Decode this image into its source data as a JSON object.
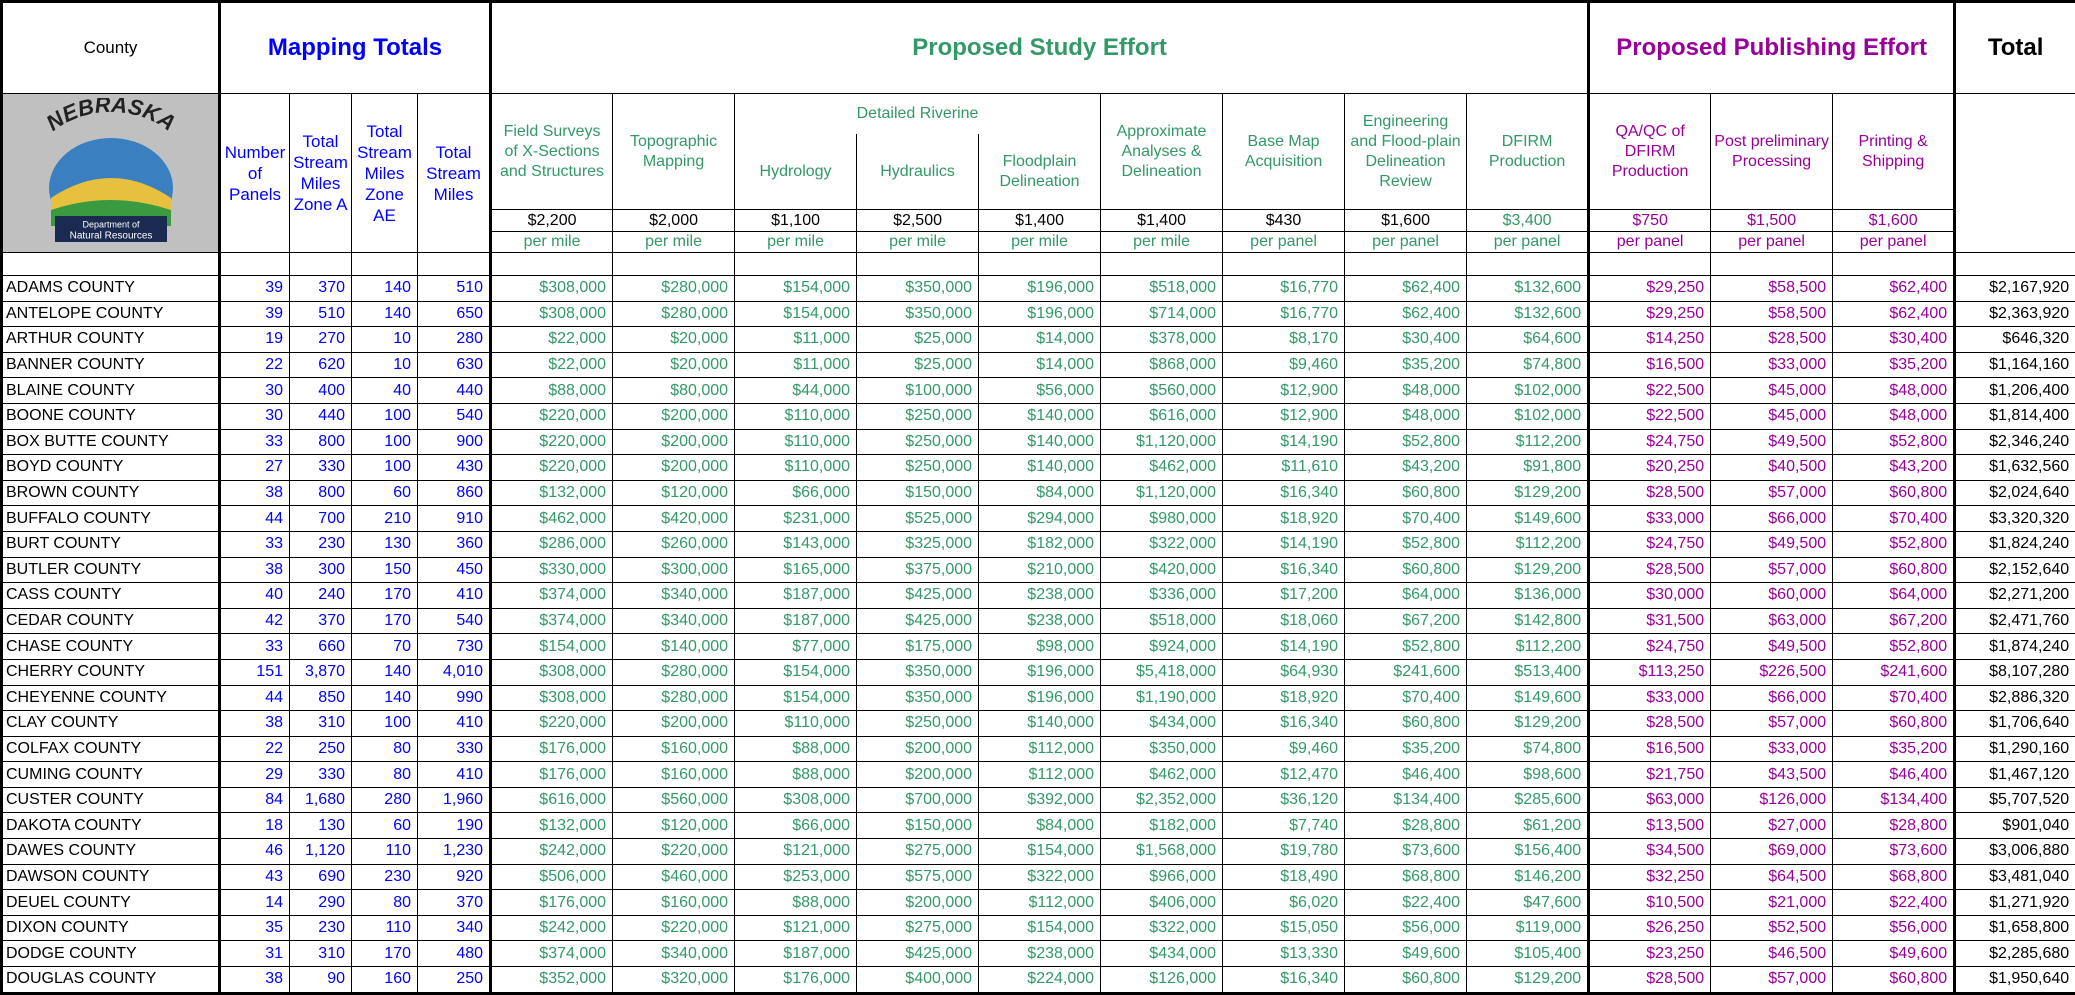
{
  "header": {
    "county": "County",
    "mapping": "Mapping Totals",
    "study": "Proposed Study Effort",
    "publishing": "Proposed Publishing Effort",
    "total": "Total"
  },
  "logo": {
    "name": "NEBRASKA",
    "department": "Department of",
    "resources": "Natural Resources"
  },
  "columns": [
    "Number of Panels",
    "Total Stream Miles Zone A",
    "Total Stream Miles Zone AE",
    "Total Stream Miles",
    "Field Surveys of X-Sections and Structures",
    "Topographic Mapping",
    "Hydrology",
    "Hydraulics",
    "Floodplain Delineation",
    "Approximate Analyses & Delineation",
    "Base Map Acquisition",
    "Engineering and Flood-plain Delineation Review",
    "DFIRM Production",
    "QA/QC of DFIRM Production",
    "Post preliminary Processing",
    "Printing & Shipping"
  ],
  "detailed_riverine": "Detailed Riverine",
  "rates": [
    {
      "rate": "$2,200",
      "unit": "per mile"
    },
    {
      "rate": "$2,000",
      "unit": "per mile"
    },
    {
      "rate": "$1,100",
      "unit": "per mile"
    },
    {
      "rate": "$2,500",
      "unit": "per mile"
    },
    {
      "rate": "$1,400",
      "unit": "per mile"
    },
    {
      "rate": "$1,400",
      "unit": "per mile"
    },
    {
      "rate": "$430",
      "unit": "per panel"
    },
    {
      "rate": "$1,600",
      "unit": "per panel"
    },
    {
      "rate": "$3,400",
      "unit": "per panel"
    },
    {
      "rate": "$750",
      "unit": "per panel"
    },
    {
      "rate": "$1,500",
      "unit": "per panel"
    },
    {
      "rate": "$1,600",
      "unit": "per panel"
    }
  ],
  "table": {
    "rows": [
      [
        "ADAMS COUNTY",
        "39",
        "370",
        "140",
        "510",
        "$308,000",
        "$280,000",
        "$154,000",
        "$350,000",
        "$196,000",
        "$518,000",
        "$16,770",
        "$62,400",
        "$132,600",
        "$29,250",
        "$58,500",
        "$62,400",
        "$2,167,920"
      ],
      [
        "ANTELOPE COUNTY",
        "39",
        "510",
        "140",
        "650",
        "$308,000",
        "$280,000",
        "$154,000",
        "$350,000",
        "$196,000",
        "$714,000",
        "$16,770",
        "$62,400",
        "$132,600",
        "$29,250",
        "$58,500",
        "$62,400",
        "$2,363,920"
      ],
      [
        "ARTHUR COUNTY",
        "19",
        "270",
        "10",
        "280",
        "$22,000",
        "$20,000",
        "$11,000",
        "$25,000",
        "$14,000",
        "$378,000",
        "$8,170",
        "$30,400",
        "$64,600",
        "$14,250",
        "$28,500",
        "$30,400",
        "$646,320"
      ],
      [
        "BANNER COUNTY",
        "22",
        "620",
        "10",
        "630",
        "$22,000",
        "$20,000",
        "$11,000",
        "$25,000",
        "$14,000",
        "$868,000",
        "$9,460",
        "$35,200",
        "$74,800",
        "$16,500",
        "$33,000",
        "$35,200",
        "$1,164,160"
      ],
      [
        "BLAINE COUNTY",
        "30",
        "400",
        "40",
        "440",
        "$88,000",
        "$80,000",
        "$44,000",
        "$100,000",
        "$56,000",
        "$560,000",
        "$12,900",
        "$48,000",
        "$102,000",
        "$22,500",
        "$45,000",
        "$48,000",
        "$1,206,400"
      ],
      [
        "BOONE COUNTY",
        "30",
        "440",
        "100",
        "540",
        "$220,000",
        "$200,000",
        "$110,000",
        "$250,000",
        "$140,000",
        "$616,000",
        "$12,900",
        "$48,000",
        "$102,000",
        "$22,500",
        "$45,000",
        "$48,000",
        "$1,814,400"
      ],
      [
        "BOX BUTTE COUNTY",
        "33",
        "800",
        "100",
        "900",
        "$220,000",
        "$200,000",
        "$110,000",
        "$250,000",
        "$140,000",
        "$1,120,000",
        "$14,190",
        "$52,800",
        "$112,200",
        "$24,750",
        "$49,500",
        "$52,800",
        "$2,346,240"
      ],
      [
        "BOYD COUNTY",
        "27",
        "330",
        "100",
        "430",
        "$220,000",
        "$200,000",
        "$110,000",
        "$250,000",
        "$140,000",
        "$462,000",
        "$11,610",
        "$43,200",
        "$91,800",
        "$20,250",
        "$40,500",
        "$43,200",
        "$1,632,560"
      ],
      [
        "BROWN COUNTY",
        "38",
        "800",
        "60",
        "860",
        "$132,000",
        "$120,000",
        "$66,000",
        "$150,000",
        "$84,000",
        "$1,120,000",
        "$16,340",
        "$60,800",
        "$129,200",
        "$28,500",
        "$57,000",
        "$60,800",
        "$2,024,640"
      ],
      [
        "BUFFALO COUNTY",
        "44",
        "700",
        "210",
        "910",
        "$462,000",
        "$420,000",
        "$231,000",
        "$525,000",
        "$294,000",
        "$980,000",
        "$18,920",
        "$70,400",
        "$149,600",
        "$33,000",
        "$66,000",
        "$70,400",
        "$3,320,320"
      ],
      [
        "BURT COUNTY",
        "33",
        "230",
        "130",
        "360",
        "$286,000",
        "$260,000",
        "$143,000",
        "$325,000",
        "$182,000",
        "$322,000",
        "$14,190",
        "$52,800",
        "$112,200",
        "$24,750",
        "$49,500",
        "$52,800",
        "$1,824,240"
      ],
      [
        "BUTLER COUNTY",
        "38",
        "300",
        "150",
        "450",
        "$330,000",
        "$300,000",
        "$165,000",
        "$375,000",
        "$210,000",
        "$420,000",
        "$16,340",
        "$60,800",
        "$129,200",
        "$28,500",
        "$57,000",
        "$60,800",
        "$2,152,640"
      ],
      [
        "CASS COUNTY",
        "40",
        "240",
        "170",
        "410",
        "$374,000",
        "$340,000",
        "$187,000",
        "$425,000",
        "$238,000",
        "$336,000",
        "$17,200",
        "$64,000",
        "$136,000",
        "$30,000",
        "$60,000",
        "$64,000",
        "$2,271,200"
      ],
      [
        "CEDAR COUNTY",
        "42",
        "370",
        "170",
        "540",
        "$374,000",
        "$340,000",
        "$187,000",
        "$425,000",
        "$238,000",
        "$518,000",
        "$18,060",
        "$67,200",
        "$142,800",
        "$31,500",
        "$63,000",
        "$67,200",
        "$2,471,760"
      ],
      [
        "CHASE COUNTY",
        "33",
        "660",
        "70",
        "730",
        "$154,000",
        "$140,000",
        "$77,000",
        "$175,000",
        "$98,000",
        "$924,000",
        "$14,190",
        "$52,800",
        "$112,200",
        "$24,750",
        "$49,500",
        "$52,800",
        "$1,874,240"
      ],
      [
        "CHERRY COUNTY",
        "151",
        "3,870",
        "140",
        "4,010",
        "$308,000",
        "$280,000",
        "$154,000",
        "$350,000",
        "$196,000",
        "$5,418,000",
        "$64,930",
        "$241,600",
        "$513,400",
        "$113,250",
        "$226,500",
        "$241,600",
        "$8,107,280"
      ],
      [
        "CHEYENNE COUNTY",
        "44",
        "850",
        "140",
        "990",
        "$308,000",
        "$280,000",
        "$154,000",
        "$350,000",
        "$196,000",
        "$1,190,000",
        "$18,920",
        "$70,400",
        "$149,600",
        "$33,000",
        "$66,000",
        "$70,400",
        "$2,886,320"
      ],
      [
        "CLAY COUNTY",
        "38",
        "310",
        "100",
        "410",
        "$220,000",
        "$200,000",
        "$110,000",
        "$250,000",
        "$140,000",
        "$434,000",
        "$16,340",
        "$60,800",
        "$129,200",
        "$28,500",
        "$57,000",
        "$60,800",
        "$1,706,640"
      ],
      [
        "COLFAX COUNTY",
        "22",
        "250",
        "80",
        "330",
        "$176,000",
        "$160,000",
        "$88,000",
        "$200,000",
        "$112,000",
        "$350,000",
        "$9,460",
        "$35,200",
        "$74,800",
        "$16,500",
        "$33,000",
        "$35,200",
        "$1,290,160"
      ],
      [
        "CUMING COUNTY",
        "29",
        "330",
        "80",
        "410",
        "$176,000",
        "$160,000",
        "$88,000",
        "$200,000",
        "$112,000",
        "$462,000",
        "$12,470",
        "$46,400",
        "$98,600",
        "$21,750",
        "$43,500",
        "$46,400",
        "$1,467,120"
      ],
      [
        "CUSTER COUNTY",
        "84",
        "1,680",
        "280",
        "1,960",
        "$616,000",
        "$560,000",
        "$308,000",
        "$700,000",
        "$392,000",
        "$2,352,000",
        "$36,120",
        "$134,400",
        "$285,600",
        "$63,000",
        "$126,000",
        "$134,400",
        "$5,707,520"
      ],
      [
        "DAKOTA COUNTY",
        "18",
        "130",
        "60",
        "190",
        "$132,000",
        "$120,000",
        "$66,000",
        "$150,000",
        "$84,000",
        "$182,000",
        "$7,740",
        "$28,800",
        "$61,200",
        "$13,500",
        "$27,000",
        "$28,800",
        "$901,040"
      ],
      [
        "DAWES COUNTY",
        "46",
        "1,120",
        "110",
        "1,230",
        "$242,000",
        "$220,000",
        "$121,000",
        "$275,000",
        "$154,000",
        "$1,568,000",
        "$19,780",
        "$73,600",
        "$156,400",
        "$34,500",
        "$69,000",
        "$73,600",
        "$3,006,880"
      ],
      [
        "DAWSON COUNTY",
        "43",
        "690",
        "230",
        "920",
        "$506,000",
        "$460,000",
        "$253,000",
        "$575,000",
        "$322,000",
        "$966,000",
        "$18,490",
        "$68,800",
        "$146,200",
        "$32,250",
        "$64,500",
        "$68,800",
        "$3,481,040"
      ],
      [
        "DEUEL COUNTY",
        "14",
        "290",
        "80",
        "370",
        "$176,000",
        "$160,000",
        "$88,000",
        "$200,000",
        "$112,000",
        "$406,000",
        "$6,020",
        "$22,400",
        "$47,600",
        "$10,500",
        "$21,000",
        "$22,400",
        "$1,271,920"
      ],
      [
        "DIXON COUNTY",
        "35",
        "230",
        "110",
        "340",
        "$242,000",
        "$220,000",
        "$121,000",
        "$275,000",
        "$154,000",
        "$322,000",
        "$15,050",
        "$56,000",
        "$119,000",
        "$26,250",
        "$52,500",
        "$56,000",
        "$1,658,800"
      ],
      [
        "DODGE COUNTY",
        "31",
        "310",
        "170",
        "480",
        "$374,000",
        "$340,000",
        "$187,000",
        "$425,000",
        "$238,000",
        "$434,000",
        "$13,330",
        "$49,600",
        "$105,400",
        "$23,250",
        "$46,500",
        "$49,600",
        "$2,285,680"
      ],
      [
        "DOUGLAS COUNTY",
        "38",
        "90",
        "160",
        "250",
        "$352,000",
        "$320,000",
        "$176,000",
        "$400,000",
        "$224,000",
        "$126,000",
        "$16,340",
        "$60,800",
        "$129,200",
        "$28,500",
        "$57,000",
        "$60,800",
        "$1,950,640"
      ]
    ]
  }
}
